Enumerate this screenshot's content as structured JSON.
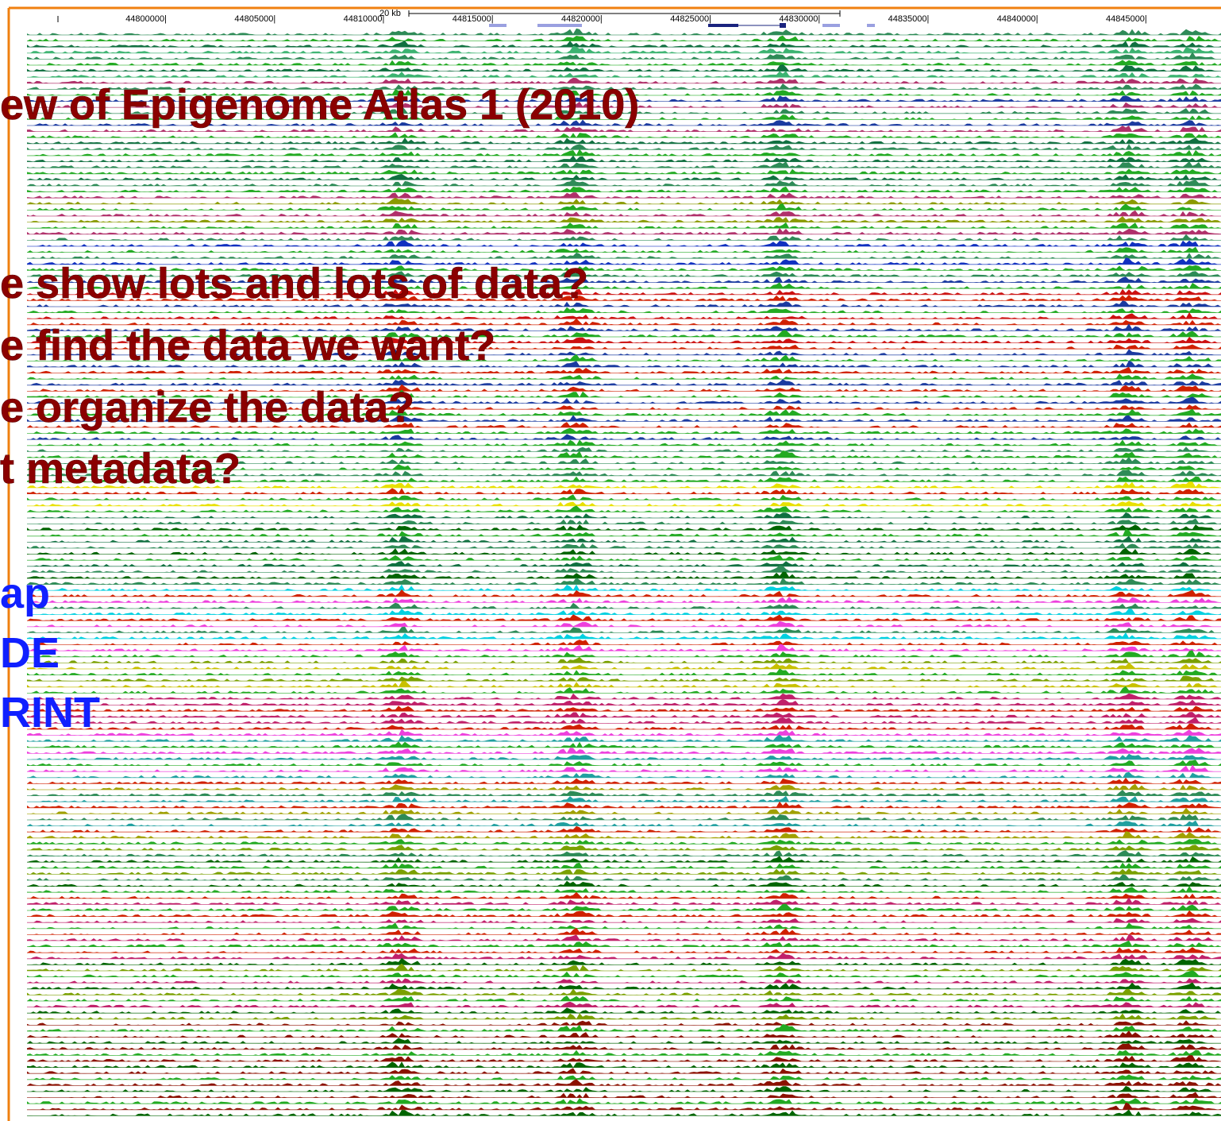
{
  "ruler": {
    "scale_label": "20 kb",
    "positions": [
      "44800000|",
      "44805000|",
      "44810000|",
      "44815000|",
      "44820000|",
      "44825000|",
      "44830000|",
      "44835000|",
      "44840000|",
      "44845000|"
    ]
  },
  "slide": {
    "title": "ew of Epigenome Atlas 1 (2010)",
    "questions": [
      "e show lots and lots of data?",
      "e find the data we want?",
      "e organize the data?",
      "t metadata?"
    ],
    "links": [
      "ap",
      "DE",
      "RINT"
    ]
  }
}
